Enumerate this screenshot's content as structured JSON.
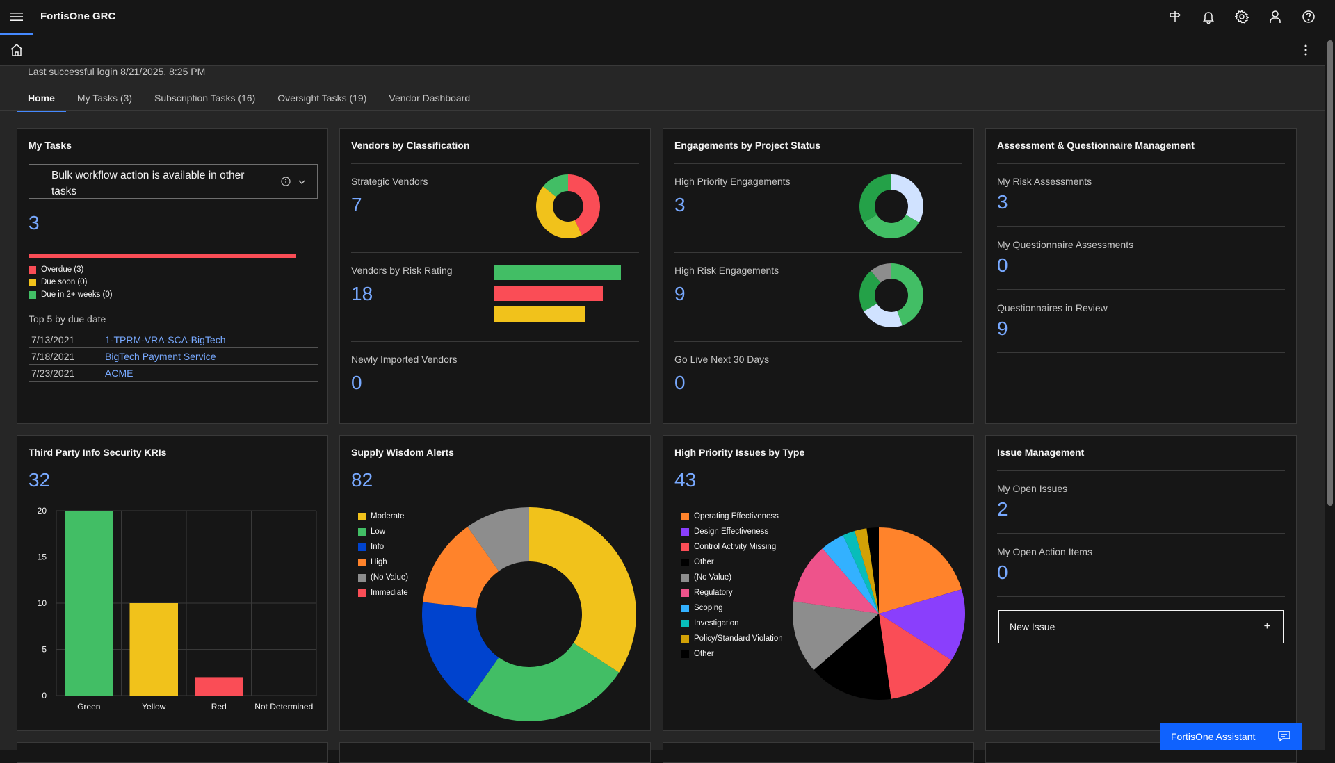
{
  "app": {
    "title": "FortisOne GRC"
  },
  "header": {
    "icons": [
      "grid-icon",
      "notification-icon",
      "settings-icon",
      "user-icon",
      "help-icon"
    ]
  },
  "login": "Last successful login 8/21/2025, 8:25 PM",
  "tabs": [
    {
      "label": "Home"
    },
    {
      "label": "My Tasks (3)"
    },
    {
      "label": "Subscription Tasks (16)"
    },
    {
      "label": "Oversight Tasks (19)"
    },
    {
      "label": "Vendor Dashboard"
    }
  ],
  "my_tasks": {
    "title": "My Tasks",
    "notice": "Bulk workflow action is available in other tasks",
    "count": "3",
    "progress": 1.0,
    "legend": [
      "Overdue (3)",
      "Due soon (0)",
      "Due in 2+ weeks (0)"
    ],
    "top5_label": "Top 5 by due date",
    "rows": [
      {
        "date": "7/13/2021",
        "name": "1-TPRM-VRA-SCA-BigTech"
      },
      {
        "date": "7/18/2021",
        "name": "BigTech Payment Service"
      },
      {
        "date": "7/23/2021",
        "name": "ACME"
      }
    ]
  },
  "vendors": {
    "title": "Vendors by Classification",
    "strategic_label": "Strategic Vendors",
    "strategic_value": "7",
    "risk_label": "Vendors by Risk Rating",
    "risk_value": "18",
    "imported_label": "Newly Imported Vendors",
    "imported_value": "0"
  },
  "engagements": {
    "title": "Engagements by Project Status",
    "high_priority_label": "High Priority Engagements",
    "high_priority_value": "3",
    "high_risk_label": "High Risk Engagements",
    "high_risk_value": "9",
    "go_live_label": "Go Live Next 30 Days",
    "go_live_value": "0"
  },
  "assessment": {
    "title": "Assessment & Questionnaire Management",
    "risk_label": "My Risk Assessments",
    "risk_value": "3",
    "questionnaire_label": "My Questionnaire Assessments",
    "questionnaire_value": "0",
    "review_label": "Questionnaires in Review",
    "review_value": "9"
  },
  "kri": {
    "title": "Third Party Info Security KRIs",
    "total": "32"
  },
  "supply": {
    "title": "Supply Wisdom Alerts",
    "total": "82"
  },
  "issues_type": {
    "title": "High Priority Issues by Type",
    "total": "43"
  },
  "issue_mgmt": {
    "title": "Issue Management",
    "open_issues_label": "My Open Issues",
    "open_issues_value": "2",
    "action_items_label": "My Open Action Items",
    "action_items_value": "0",
    "new_issue_label": "New Issue"
  },
  "assistant": {
    "label": "FortisOne Assistant"
  },
  "colors": {
    "green": "#42be65",
    "yellow": "#f1c21b",
    "red": "#fa4d56",
    "blue": "#0043ce",
    "orange": "#ff832b",
    "gray": "#8d8d8d",
    "purple": "#8a3ffc",
    "pink": "#ee538b",
    "cyan": "#33b1ff",
    "teal": "#08bdba",
    "gold": "#d2a106",
    "lightblue": "#d0e2ff",
    "darkgreen": "#24a148"
  },
  "chart_data": [
    {
      "type": "pie",
      "id": "strategic-vendors",
      "categories": [
        "Red",
        "Yellow",
        "Green"
      ],
      "values": [
        3,
        3,
        1
      ]
    },
    {
      "type": "bar",
      "id": "vendors-risk-rating",
      "categories": [
        "Green",
        "Red",
        "Yellow"
      ],
      "values": [
        7,
        6,
        5
      ]
    },
    {
      "type": "pie",
      "id": "high-priority-engagements",
      "categories": [
        "Light Blue",
        "Green",
        "Dark Green"
      ],
      "values": [
        1,
        1,
        1
      ]
    },
    {
      "type": "pie",
      "id": "high-risk-engagements",
      "categories": [
        "Green",
        "Light Blue",
        "Dark Green",
        "Gray"
      ],
      "values": [
        4,
        2,
        2,
        1
      ]
    },
    {
      "type": "bar",
      "id": "kri",
      "categories": [
        "Green",
        "Yellow",
        "Red",
        "Not Determined"
      ],
      "values": [
        20,
        10,
        2,
        0
      ],
      "ylim": [
        0,
        20
      ],
      "yticks": [
        0,
        5,
        10,
        15,
        20
      ]
    },
    {
      "type": "pie",
      "id": "supply-wisdom",
      "series": [
        {
          "name": "Moderate",
          "value": 28
        },
        {
          "name": "Low",
          "value": 21
        },
        {
          "name": "Info",
          "value": 14
        },
        {
          "name": "High",
          "value": 11
        },
        {
          "name": "(No Value)",
          "value": 8
        },
        {
          "name": "Immediate",
          "value": 0
        }
      ]
    },
    {
      "type": "pie",
      "id": "issues-by-type",
      "series": [
        {
          "name": "Operating Effectiveness",
          "value": 9
        },
        {
          "name": "Design Effectiveness",
          "value": 6
        },
        {
          "name": "Control Activity Missing",
          "value": 6
        },
        {
          "name": "Other",
          "value": 7
        },
        {
          "name": "(No Value)",
          "value": 6
        },
        {
          "name": "Regulatory",
          "value": 5
        },
        {
          "name": "Scoping",
          "value": 2
        },
        {
          "name": "Investigation",
          "value": 1
        },
        {
          "name": "Policy/Standard Violation",
          "value": 1
        },
        {
          "name": "Other",
          "value": 1
        }
      ]
    }
  ]
}
